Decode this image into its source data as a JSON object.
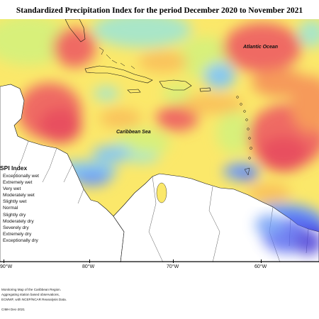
{
  "title": "Standardized Precipitation Index for the period December 2020 to November 2021",
  "labels": {
    "atlantic": "Atlantic Ocean",
    "caribbean": "Caribbean Sea"
  },
  "legend": {
    "title": "SPI Index",
    "items": [
      {
        "label": "Exceptionally wet",
        "color": "#4b3fd8"
      },
      {
        "label": "Extremely wet",
        "color": "#5a6cf0"
      },
      {
        "label": "Very wet",
        "color": "#6e9cf5"
      },
      {
        "label": "Moderately wet",
        "color": "#86c8f0"
      },
      {
        "label": "Slightly wet",
        "color": "#a9e6c8"
      },
      {
        "label": "Normal",
        "color": "#d8f07a"
      },
      {
        "label": "Slightly dry",
        "color": "#fbe86a"
      },
      {
        "label": "Moderately dry",
        "color": "#f9c25c"
      },
      {
        "label": "Severely dry",
        "color": "#f69a5a"
      },
      {
        "label": "Extremely dry",
        "color": "#ef6b63"
      },
      {
        "label": "Exceptionally dry",
        "color": "#e8505f"
      }
    ]
  },
  "longitude_labels": [
    "90°W",
    "80°W",
    "70°W",
    "60°W"
  ],
  "credits": {
    "line1": "Monitoring Map of the Caribbean Region.",
    "line2": "Aggregating station based observations,",
    "line3": "ECMWF, with NCEP/NCAR Reanalysis Data.",
    "line4": "CIMH Dec-2021"
  }
}
